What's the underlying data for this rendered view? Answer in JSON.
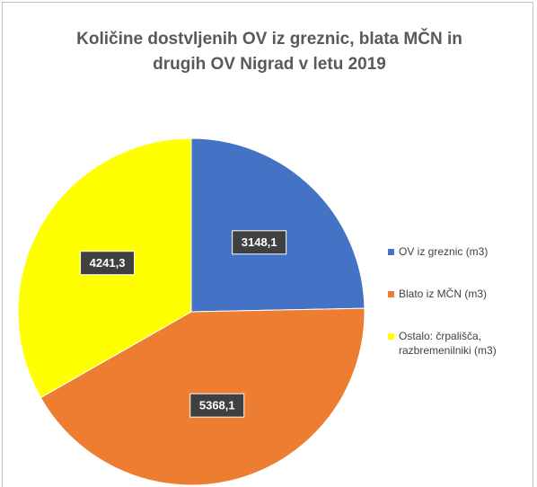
{
  "chart_data": {
    "type": "pie",
    "title": "Količine dostvljenih OV iz greznic, blata MČN in drugih OV Nigrad v letu 2019",
    "categories": [
      "OV iz greznic (m3)",
      "Blato iz MČN (m3)",
      "Ostalo: črpališča, razbremenilniki (m3)"
    ],
    "values": [
      3148.1,
      5368.1,
      4241.3
    ],
    "value_labels": [
      "3148,1",
      "5368,1",
      "4241,3"
    ],
    "colors": [
      "#4472c4",
      "#ed7d31",
      "#ffff00"
    ],
    "legend": "right"
  }
}
